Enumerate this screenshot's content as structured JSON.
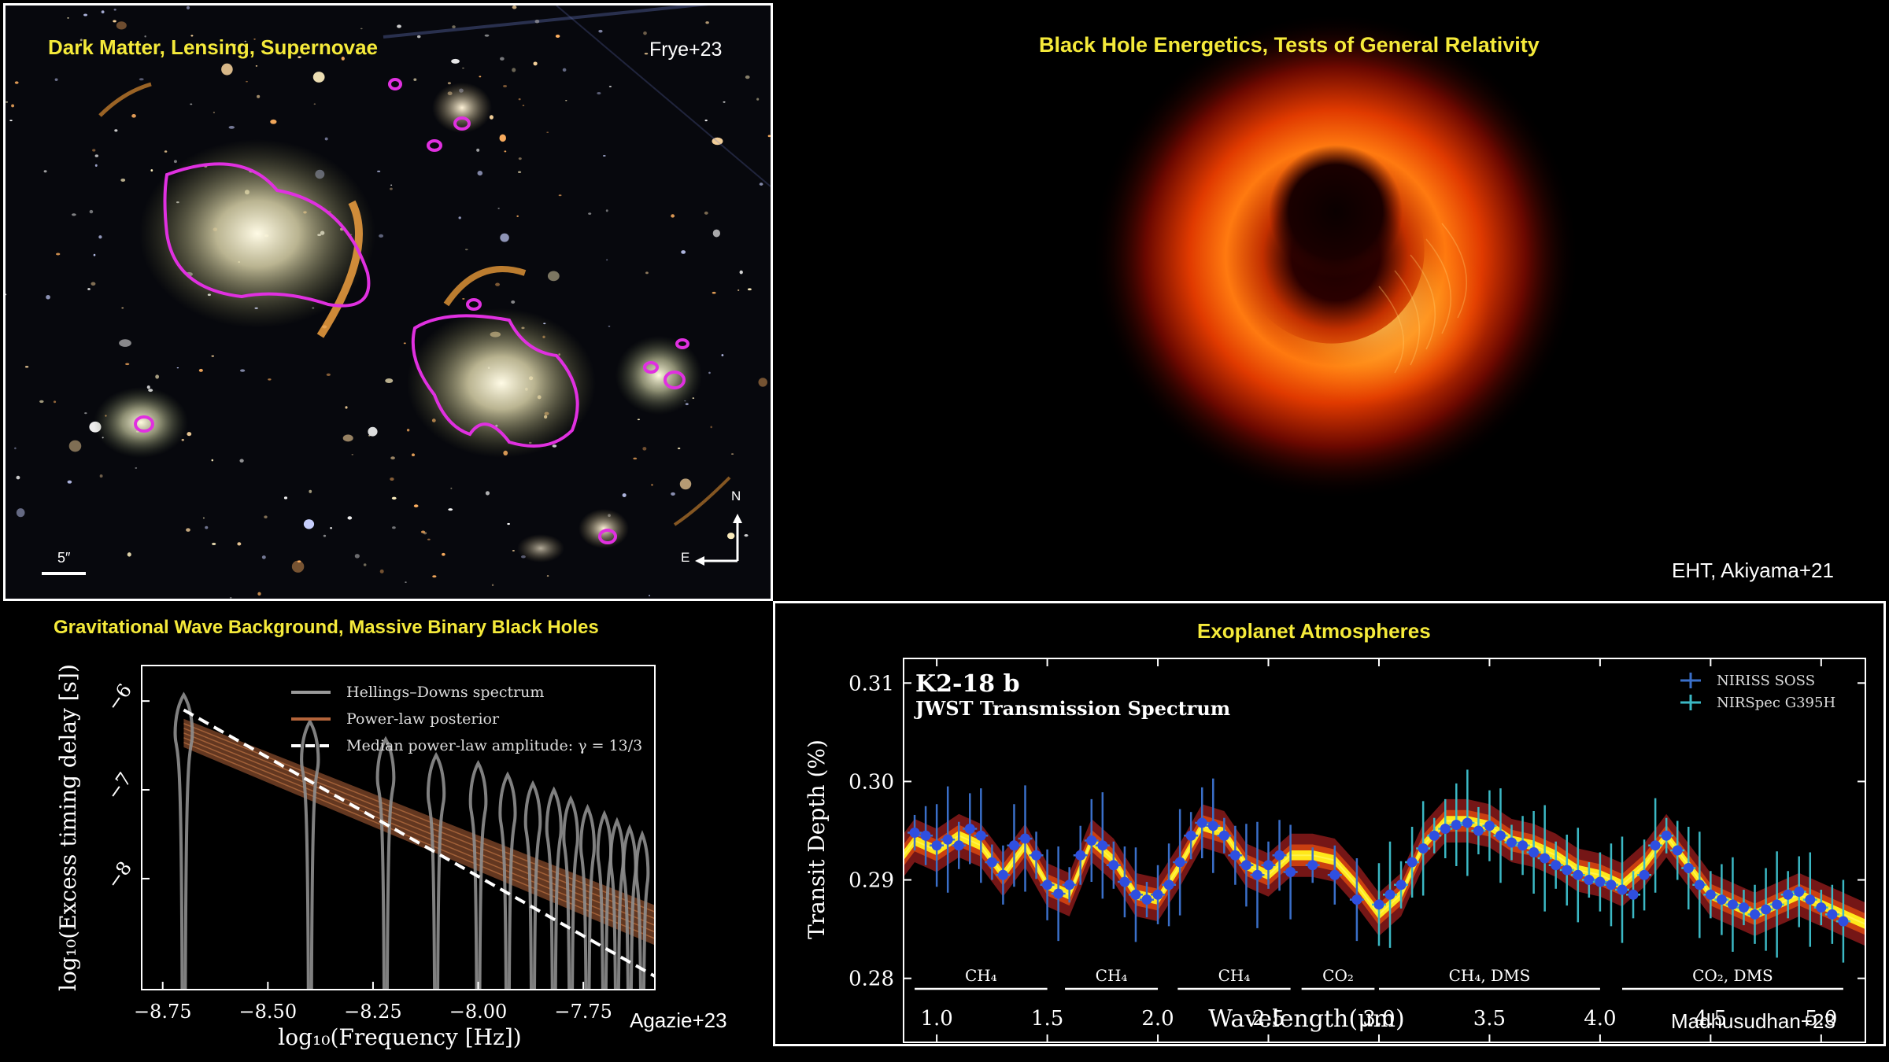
{
  "panels": {
    "lensing": {
      "title": "Dark Matter, Lensing, Supernovae",
      "credit": "Frye+23",
      "scale_label": "5″",
      "compass_n": "N",
      "compass_e": "E"
    },
    "blackhole": {
      "title": "Black Hole Energetics, Tests of General Relativity",
      "credit": "EHT, Akiyama+21"
    },
    "gw": {
      "title": "Gravitational Wave Background, Massive Binary Black Holes",
      "credit": "Agazie+23"
    },
    "exoplanet": {
      "title": "Exoplanet Atmospheres",
      "credit": "Madhusudhan+23"
    }
  },
  "chart_data": [
    {
      "type": "line",
      "xlabel": "log₁₀(Frequency [Hz])",
      "ylabel": "log₁₀(Excess timing delay [s])",
      "xlim": [
        -8.8,
        -7.58
      ],
      "ylim": [
        -9.25,
        -5.6
      ],
      "x_ticks": [
        -8.75,
        -8.5,
        -8.25,
        -8.0,
        -7.75
      ],
      "x_tick_labels": [
        "−8.75",
        "−8.50",
        "−8.25",
        "−8.00",
        "−7.75"
      ],
      "y_ticks": [
        -6,
        -7,
        -8
      ],
      "y_tick_labels": [
        "−6",
        "−7",
        "−8"
      ],
      "legend": [
        {
          "label": "Hellings–Downs spectrum",
          "color": "#9a9a9a"
        },
        {
          "label": "Power-law posterior",
          "color": "#b4643a"
        },
        {
          "label": "Median power-law amplitude: γ = 13/3",
          "color": "#ffffff"
        }
      ],
      "legend_position": "top-right",
      "violins_x": [
        -8.7,
        -8.4,
        -8.22,
        -8.1,
        -8.0,
        -7.93,
        -7.87,
        -7.82,
        -7.78,
        -7.74,
        -7.7,
        -7.67,
        -7.64,
        -7.61
      ],
      "violins_median": [
        -6.48,
        -6.78,
        -6.98,
        -7.16,
        -7.25,
        -7.38,
        -7.48,
        -7.55,
        -7.65,
        -7.75,
        -7.82,
        -7.9,
        -7.98,
        -8.05
      ],
      "median_line": {
        "x": [
          -8.7,
          -7.58
        ],
        "y": [
          -6.1,
          -9.1
        ]
      },
      "posterior_band": {
        "x": [
          -8.7,
          -7.58
        ],
        "lower": [
          -6.52,
          -8.75
        ],
        "upper": [
          -6.2,
          -8.3
        ]
      }
    },
    {
      "type": "scatter",
      "title": "K2-18 b",
      "subtitle": "JWST Transmission Spectrum",
      "xlabel": "Wavelength(μm)",
      "ylabel": "Transit Depth (%)",
      "xlim": [
        0.85,
        5.2
      ],
      "ylim": [
        0.2735,
        0.3125
      ],
      "x_ticks": [
        1.0,
        1.5,
        2.0,
        2.5,
        3.0,
        3.5,
        4.0,
        4.5,
        5.0
      ],
      "x_tick_labels": [
        "1.0",
        "1.5",
        "2.0",
        "2.5",
        "3.0",
        "3.5",
        "4.0",
        "4.5",
        "5.0"
      ],
      "y_ticks": [
        0.28,
        0.29,
        0.3,
        0.31
      ],
      "y_tick_labels": [
        "0.28",
        "0.29",
        "0.30",
        "0.31"
      ],
      "legend": [
        {
          "label": "NIRISS SOSS",
          "color": "#3a6fc9"
        },
        {
          "label": "NIRSpec G395H",
          "color": "#3bb8c4"
        }
      ],
      "legend_position": "top-right",
      "model_x": [
        0.85,
        0.9,
        1.0,
        1.1,
        1.2,
        1.3,
        1.4,
        1.5,
        1.6,
        1.7,
        1.8,
        1.9,
        2.0,
        2.1,
        2.2,
        2.3,
        2.4,
        2.5,
        2.6,
        2.7,
        2.8,
        2.9,
        3.0,
        3.1,
        3.2,
        3.3,
        3.4,
        3.5,
        3.6,
        3.7,
        3.8,
        3.9,
        4.0,
        4.1,
        4.2,
        4.3,
        4.4,
        4.5,
        4.6,
        4.7,
        4.8,
        4.9,
        5.0,
        5.1,
        5.2
      ],
      "model_y": [
        0.2925,
        0.294,
        0.293,
        0.2945,
        0.2935,
        0.2905,
        0.2935,
        0.2895,
        0.2885,
        0.294,
        0.292,
        0.2885,
        0.288,
        0.2915,
        0.2955,
        0.2948,
        0.2915,
        0.2905,
        0.2925,
        0.2925,
        0.292,
        0.2895,
        0.2865,
        0.2885,
        0.2935,
        0.296,
        0.296,
        0.2955,
        0.294,
        0.2935,
        0.2925,
        0.291,
        0.2905,
        0.2895,
        0.2915,
        0.2945,
        0.2915,
        0.2885,
        0.2875,
        0.2865,
        0.2875,
        0.2885,
        0.2875,
        0.2865,
        0.2855
      ],
      "series": [
        {
          "name": "NIRISS SOSS",
          "x": [
            0.9,
            0.95,
            1.0,
            1.05,
            1.1,
            1.15,
            1.2,
            1.25,
            1.3,
            1.35,
            1.4,
            1.45,
            1.5,
            1.55,
            1.6,
            1.65,
            1.7,
            1.75,
            1.8,
            1.85,
            1.9,
            1.95,
            2.0,
            2.05,
            2.1,
            2.15,
            2.2,
            2.25,
            2.3,
            2.35,
            2.4,
            2.45,
            2.5,
            2.55,
            2.6,
            2.7,
            2.8,
            2.9
          ],
          "y": [
            0.2948,
            0.2945,
            0.2935,
            0.2941,
            0.2935,
            0.2952,
            0.2945,
            0.2918,
            0.2905,
            0.2935,
            0.2942,
            0.2925,
            0.2895,
            0.2886,
            0.2895,
            0.2925,
            0.294,
            0.2935,
            0.2915,
            0.2898,
            0.2885,
            0.288,
            0.2885,
            0.2895,
            0.2918,
            0.2945,
            0.2958,
            0.2955,
            0.2945,
            0.2925,
            0.2915,
            0.2905,
            0.2915,
            0.2925,
            0.2908,
            0.2915,
            0.2905,
            0.288
          ]
        },
        {
          "name": "NIRSpec G395H",
          "x": [
            3.0,
            3.05,
            3.1,
            3.15,
            3.2,
            3.25,
            3.3,
            3.35,
            3.4,
            3.45,
            3.5,
            3.55,
            3.6,
            3.65,
            3.7,
            3.75,
            3.8,
            3.85,
            3.9,
            3.95,
            4.0,
            4.05,
            4.1,
            4.15,
            4.2,
            4.25,
            4.3,
            4.35,
            4.4,
            4.45,
            4.5,
            4.55,
            4.6,
            4.65,
            4.7,
            4.75,
            4.8,
            4.85,
            4.9,
            4.95,
            5.0,
            5.05,
            5.1
          ],
          "y": [
            0.2875,
            0.2885,
            0.2895,
            0.2918,
            0.2932,
            0.2945,
            0.2952,
            0.2956,
            0.2958,
            0.295,
            0.2955,
            0.2945,
            0.2938,
            0.2935,
            0.2928,
            0.2922,
            0.2915,
            0.291,
            0.2905,
            0.29,
            0.2898,
            0.2895,
            0.289,
            0.2885,
            0.2905,
            0.2935,
            0.2945,
            0.293,
            0.2912,
            0.2895,
            0.2885,
            0.288,
            0.2875,
            0.2872,
            0.2865,
            0.287,
            0.2875,
            0.2885,
            0.2888,
            0.288,
            0.2872,
            0.2865,
            0.2858
          ]
        }
      ],
      "annotations": [
        {
          "label": "CH₄",
          "x_from": 0.9,
          "x_to": 1.5
        },
        {
          "label": "CH₄",
          "x_from": 1.58,
          "x_to": 2.0
        },
        {
          "label": "CH₄",
          "x_from": 2.09,
          "x_to": 2.6
        },
        {
          "label": "CO₂",
          "x_from": 2.65,
          "x_to": 2.98
        },
        {
          "label": "CH₄, DMS",
          "x_from": 3.0,
          "x_to": 4.0
        },
        {
          "label": "CO₂, DMS",
          "x_from": 4.1,
          "x_to": 5.1
        }
      ]
    }
  ]
}
